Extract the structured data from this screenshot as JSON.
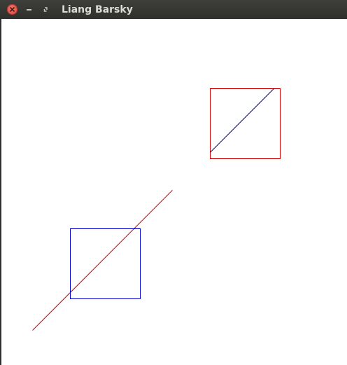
{
  "window": {
    "title": "Liang Barsky",
    "controls": {
      "close_icon": "close-icon",
      "minimize_icon": "minimize-icon",
      "maximize_icon": "maximize-icon"
    }
  },
  "colors": {
    "clip_window_1": "#cc0000",
    "clipped_line_1": "#000080",
    "clip_window_2": "#0000cc",
    "clipped_line_2": "#cc0000"
  }
}
